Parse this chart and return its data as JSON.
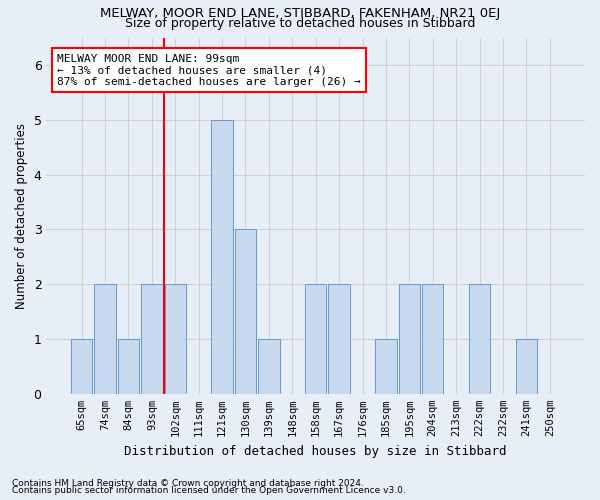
{
  "title1": "MELWAY, MOOR END LANE, STIBBARD, FAKENHAM, NR21 0EJ",
  "title2": "Size of property relative to detached houses in Stibbard",
  "xlabel": "Distribution of detached houses by size in Stibbard",
  "ylabel": "Number of detached properties",
  "categories": [
    "65sqm",
    "74sqm",
    "84sqm",
    "93sqm",
    "102sqm",
    "111sqm",
    "121sqm",
    "130sqm",
    "139sqm",
    "148sqm",
    "158sqm",
    "167sqm",
    "176sqm",
    "185sqm",
    "195sqm",
    "204sqm",
    "213sqm",
    "222sqm",
    "232sqm",
    "241sqm",
    "250sqm"
  ],
  "values": [
    1,
    2,
    1,
    2,
    2,
    0,
    5,
    3,
    1,
    0,
    2,
    2,
    0,
    1,
    2,
    2,
    0,
    2,
    0,
    1,
    0
  ],
  "bar_color": "#c8d8ee",
  "bar_edge_color": "#6699cc",
  "red_line_index": 4,
  "annotation_line1": "MELWAY MOOR END LANE: 99sqm",
  "annotation_line2": "← 13% of detached houses are smaller (4)",
  "annotation_line3": "87% of semi-detached houses are larger (26) →",
  "annotation_box_color": "white",
  "annotation_box_edge_color": "red",
  "ylim": [
    0,
    6.5
  ],
  "yticks": [
    0,
    1,
    2,
    3,
    4,
    5,
    6
  ],
  "grid_color": "#d0d0d0",
  "footnote1": "Contains HM Land Registry data © Crown copyright and database right 2024.",
  "footnote2": "Contains public sector information licensed under the Open Government Licence v3.0.",
  "bg_color": "#e8eef8"
}
